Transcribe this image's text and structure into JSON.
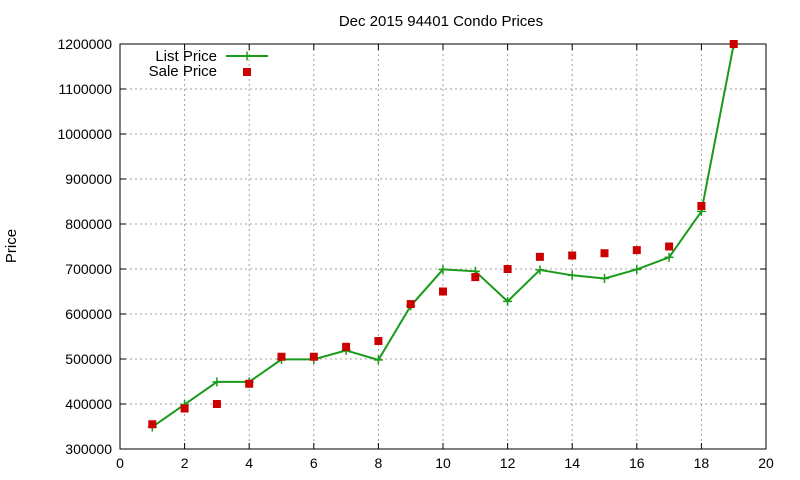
{
  "chart_data": {
    "type": "line",
    "title": "Dec 2015 94401 Condo Prices",
    "xlabel": "",
    "ylabel": "Price",
    "xlim": [
      0,
      20
    ],
    "ylim": [
      300000,
      1200000
    ],
    "xticks": [
      "0",
      "2",
      "4",
      "6",
      "8",
      "10",
      "12",
      "14",
      "16",
      "18",
      "20"
    ],
    "yticks": [
      "300000",
      "400000",
      "500000",
      "600000",
      "700000",
      "800000",
      "900000",
      "1000000",
      "1100000",
      "1200000"
    ],
    "grid": true,
    "legend_position": "top-left",
    "series": [
      {
        "name": "List Price",
        "kind": "line-with-markers",
        "marker": "plus",
        "color": "#1a9a1a",
        "x": [
          1,
          2,
          3,
          4,
          5,
          6,
          7,
          8,
          9,
          10,
          11,
          12,
          13,
          14,
          15,
          16,
          17,
          18,
          19
        ],
        "values": [
          349000,
          399000,
          449000,
          449000,
          499000,
          499000,
          519000,
          498000,
          618000,
          699000,
          695000,
          628000,
          698000,
          686000,
          679000,
          699000,
          726000,
          828000,
          1199000
        ]
      },
      {
        "name": "Sale Price",
        "kind": "points",
        "marker": "square",
        "color": "#cc0000",
        "x": [
          1,
          2,
          3,
          4,
          5,
          6,
          7,
          8,
          9,
          10,
          11,
          12,
          13,
          14,
          15,
          16,
          17,
          18,
          19
        ],
        "values": [
          355000,
          390000,
          400000,
          445000,
          505000,
          505000,
          527000,
          540000,
          622000,
          650000,
          682000,
          700000,
          727000,
          730000,
          735000,
          742000,
          750000,
          840000,
          1200000
        ]
      }
    ]
  }
}
